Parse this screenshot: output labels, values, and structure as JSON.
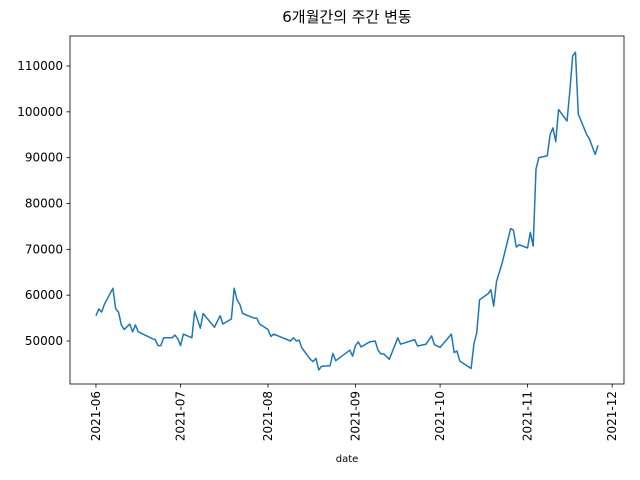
{
  "chart_data": {
    "type": "line",
    "title": "6개월간의 주간 변동",
    "x_label": "date",
    "x": [
      18779,
      18780,
      18781,
      18782,
      18785,
      18786,
      18787,
      18788,
      18789,
      18791,
      18792,
      18793,
      18794,
      18799,
      18800,
      18801,
      18802,
      18803,
      18806,
      18807,
      18808,
      18809,
      18810,
      18813,
      18814,
      18816,
      18817,
      18821,
      18823,
      18824,
      18827,
      18828,
      18829,
      18830,
      18831,
      18835,
      18836,
      18837,
      18840,
      18841,
      18842,
      18844,
      18848,
      18849,
      18850,
      18851,
      18852,
      18855,
      18856,
      18857,
      18858,
      18859,
      18862,
      18863,
      18864,
      18869,
      18870,
      18871,
      18872,
      18873,
      18876,
      18878,
      18879,
      18880,
      18881,
      18883,
      18886,
      18887,
      18892,
      18893,
      18896,
      18898,
      18899,
      18901,
      18905,
      18906,
      18907,
      18908,
      18912,
      18913,
      18914,
      18915,
      18918,
      18919,
      18920,
      18921,
      18923,
      18925,
      18926,
      18927,
      18928,
      18929,
      18932,
      18933,
      18934,
      18935,
      18936,
      18939,
      18940,
      18941,
      18942,
      18943,
      18946,
      18947,
      18948,
      18949,
      18950,
      18953,
      18954,
      18956,
      18957
    ],
    "series": [
      {
        "color": "#1f77b4",
        "values": [
          55500,
          57000,
          56300,
          58000,
          61500,
          57000,
          56300,
          53500,
          52500,
          53700,
          52000,
          53500,
          52000,
          50500,
          50300,
          49000,
          49000,
          50700,
          50700,
          51300,
          50500,
          49000,
          51500,
          50700,
          56500,
          52800,
          56000,
          53000,
          55500,
          53700,
          54800,
          61500,
          59000,
          58000,
          56000,
          55000,
          55000,
          53700,
          52500,
          51000,
          51500,
          51000,
          50000,
          50700,
          50000,
          50200,
          48500,
          46000,
          45500,
          46200,
          43700,
          44500,
          44600,
          47300,
          45700,
          48000,
          46700,
          49000,
          49800,
          48700,
          49800,
          50000,
          48000,
          47200,
          47200,
          46000,
          50700,
          49300,
          50300,
          48900,
          49300,
          51100,
          49200,
          48600,
          51500,
          47500,
          47800,
          45600,
          44000,
          49400,
          51800,
          59000,
          60300,
          61200,
          57600,
          63000,
          67000,
          72000,
          74500,
          74200,
          70500,
          71000,
          70300,
          73700,
          70700,
          87500,
          90000,
          90400,
          95000,
          96500,
          93500,
          100500,
          98000,
          104500,
          112200,
          113000,
          99500,
          95000,
          94000,
          90700,
          92700
        ]
      }
    ],
    "xlim": [
      18769.8,
      18966.2
    ],
    "xticks": [
      {
        "value": 18779,
        "label": "2021-06"
      },
      {
        "value": 18809,
        "label": "2021-07"
      },
      {
        "value": 18840,
        "label": "2021-08"
      },
      {
        "value": 18871,
        "label": "2021-09"
      },
      {
        "value": 18901,
        "label": "2021-10"
      },
      {
        "value": 18932,
        "label": "2021-11"
      },
      {
        "value": 18962,
        "label": "2021-12"
      }
    ],
    "ylim": [
      40618,
      116545
    ],
    "yticks": [
      50000,
      60000,
      70000,
      80000,
      90000,
      100000,
      110000
    ]
  }
}
